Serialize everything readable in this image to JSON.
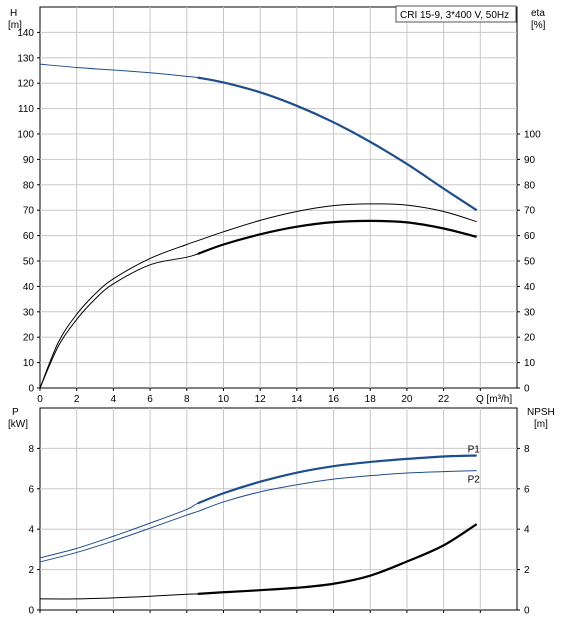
{
  "legend_text": "CRI 15-9, 3*400 V, 50Hz",
  "chart_data": [
    {
      "id": "head-efficiency",
      "type": "line",
      "xlabel": "Q [m³/h]",
      "left_axis": {
        "label_line1": "H",
        "label_line2": "[m]",
        "ylim": [
          0,
          150
        ],
        "ticks": [
          0,
          10,
          20,
          30,
          40,
          50,
          60,
          70,
          80,
          90,
          100,
          110,
          120,
          130,
          140
        ]
      },
      "right_axis": {
        "label_line1": "eta",
        "label_line2": "[%]",
        "ylim": [
          0,
          150
        ],
        "ticks": [
          0,
          10,
          20,
          30,
          40,
          50,
          60,
          70,
          80,
          90,
          100
        ]
      },
      "xlim": [
        0,
        26
      ],
      "x_ticks": [
        0,
        2,
        4,
        6,
        8,
        10,
        12,
        14,
        16,
        18,
        20,
        22
      ],
      "grid": true,
      "series": [
        {
          "id": "H",
          "axis": "left",
          "color": "#1f4e8c",
          "x": [
            0,
            2,
            4,
            6,
            8,
            8.6,
            10,
            12,
            14,
            16,
            18,
            20,
            22,
            23.8
          ],
          "y": [
            127.5,
            126.2,
            125.2,
            124.1,
            122.7,
            122.2,
            120.3,
            116.4,
            111.1,
            104.6,
            96.9,
            88.2,
            78.5,
            70.0
          ],
          "bold_from": 8.6
        },
        {
          "id": "eta-upper",
          "axis": "right",
          "color": "#000000",
          "x": [
            0,
            1,
            2,
            3,
            4,
            6,
            8,
            8.6,
            10,
            12,
            14,
            16,
            18,
            20,
            22,
            23.8
          ],
          "y": [
            0,
            18,
            29,
            37,
            43,
            51,
            56.5,
            58,
            61.5,
            66,
            69.5,
            71.8,
            72.5,
            72,
            69.5,
            65.5
          ]
        },
        {
          "id": "eta-lower",
          "axis": "right",
          "color": "#000000",
          "x": [
            0,
            1,
            2,
            3,
            4,
            6,
            8,
            8.6,
            10,
            12,
            14,
            16,
            18,
            20,
            22,
            23.8
          ],
          "y": [
            0,
            16.5,
            27,
            35,
            41,
            48.5,
            51.5,
            52.8,
            56.5,
            60.5,
            63.5,
            65.3,
            65.8,
            65.2,
            62.8,
            59.5
          ],
          "bold_from": 8.6
        }
      ]
    },
    {
      "id": "power-npsh",
      "type": "line",
      "left_axis": {
        "label_line1": "P",
        "label_line2": "[kW]",
        "ylim": [
          0,
          10
        ],
        "ticks": [
          0,
          2,
          4,
          6,
          8
        ]
      },
      "right_axis": {
        "label_line1": "NPSH",
        "label_line2": "[m]",
        "ylim": [
          0,
          10
        ],
        "ticks": [
          0,
          2,
          4,
          6,
          8
        ]
      },
      "xlim": [
        0,
        26
      ],
      "grid": true,
      "series": [
        {
          "id": "P1",
          "name": "P1",
          "axis": "left",
          "color": "#1f4e8c",
          "x": [
            0,
            2,
            4,
            6,
            8,
            8.6,
            10,
            12,
            14,
            16,
            18,
            20,
            22,
            23.8
          ],
          "y": [
            2.58,
            3.05,
            3.65,
            4.3,
            4.98,
            5.28,
            5.78,
            6.35,
            6.8,
            7.12,
            7.33,
            7.48,
            7.6,
            7.65
          ],
          "bold_from": 8.6
        },
        {
          "id": "P2",
          "name": "P2",
          "axis": "left",
          "color": "#1f4e8c",
          "x": [
            0,
            2,
            4,
            6,
            8,
            8.6,
            10,
            12,
            14,
            16,
            18,
            20,
            22,
            23.8
          ],
          "y": [
            2.38,
            2.85,
            3.42,
            4.05,
            4.7,
            4.88,
            5.35,
            5.85,
            6.2,
            6.48,
            6.65,
            6.78,
            6.85,
            6.9
          ]
        },
        {
          "id": "NPSH",
          "axis": "right",
          "color": "#000000",
          "x": [
            0,
            2,
            4,
            6,
            8,
            8.6,
            10,
            12,
            14,
            16,
            18,
            20,
            22,
            23.8
          ],
          "y": [
            0.55,
            0.55,
            0.6,
            0.68,
            0.78,
            0.8,
            0.88,
            0.98,
            1.1,
            1.3,
            1.7,
            2.4,
            3.2,
            4.25
          ],
          "bold_from": 8.6
        }
      ]
    }
  ]
}
